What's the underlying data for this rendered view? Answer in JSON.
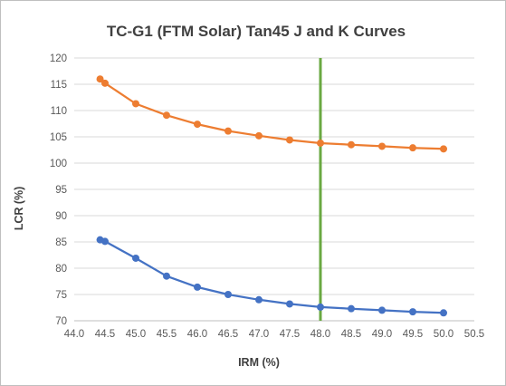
{
  "chart_data": {
    "type": "line",
    "title": "TC-G1 (FTM Solar) Tan45 J and K Curves",
    "xlabel": "IRM (%)",
    "ylabel": "LCR (%)",
    "xlim": [
      44.0,
      50.5
    ],
    "ylim": [
      70,
      120
    ],
    "x_ticks": [
      "44.0",
      "44.5",
      "45.0",
      "45.5",
      "46.0",
      "46.5",
      "47.0",
      "47.5",
      "48.0",
      "48.5",
      "49.0",
      "49.5",
      "50.0",
      "50.5"
    ],
    "y_ticks": [
      "70",
      "75",
      "80",
      "85",
      "90",
      "95",
      "100",
      "105",
      "110",
      "115",
      "120"
    ],
    "grid": true,
    "legend": "none",
    "series": [
      {
        "color": "#ed7d31",
        "points": [
          [
            44.42,
            116.0
          ],
          [
            44.5,
            115.2
          ],
          [
            45.0,
            111.3
          ],
          [
            45.5,
            109.1
          ],
          [
            46.0,
            107.4
          ],
          [
            46.5,
            106.1
          ],
          [
            47.0,
            105.2
          ],
          [
            47.5,
            104.4
          ],
          [
            48.0,
            103.8
          ],
          [
            48.5,
            103.5
          ],
          [
            49.0,
            103.2
          ],
          [
            49.5,
            102.9
          ],
          [
            50.0,
            102.7
          ]
        ]
      },
      {
        "color": "#4472c4",
        "points": [
          [
            44.42,
            85.4
          ],
          [
            44.5,
            85.1
          ],
          [
            45.0,
            81.9
          ],
          [
            45.5,
            78.5
          ],
          [
            46.0,
            76.4
          ],
          [
            46.5,
            75.0
          ],
          [
            47.0,
            74.0
          ],
          [
            47.5,
            73.2
          ],
          [
            48.0,
            72.6
          ],
          [
            48.5,
            72.3
          ],
          [
            49.0,
            72.0
          ],
          [
            49.5,
            71.7
          ],
          [
            50.0,
            71.5
          ]
        ]
      }
    ],
    "vertical_line": {
      "x": 48.0,
      "color": "#6aa842"
    }
  }
}
